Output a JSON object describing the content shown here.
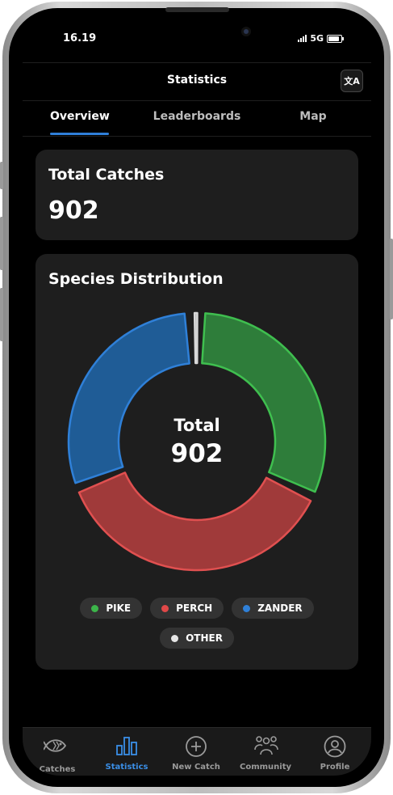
{
  "status_bar": {
    "time": "16.19",
    "network": "5G"
  },
  "header": {
    "title": "Statistics",
    "translate_icon": "translate-icon",
    "translate_glyph": "文A"
  },
  "tabs": [
    {
      "label": "Overview",
      "active": true
    },
    {
      "label": "Leaderboards",
      "active": false
    },
    {
      "label": "Map",
      "active": false
    }
  ],
  "total_card": {
    "title": "Total Catches",
    "value": "902"
  },
  "species_card": {
    "title": "Species Distribution",
    "center_label": "Total",
    "center_value": "902"
  },
  "chart_data": {
    "type": "pie",
    "categories": [
      "PIKE",
      "PERCH",
      "ZANDER",
      "OTHER"
    ],
    "values": [
      285,
      335,
      270,
      12
    ],
    "colors": [
      "#2e7d3a",
      "#a03a3a",
      "#1f5c96",
      "#b0b0b0"
    ],
    "stroke_colors": [
      "#3fbf4f",
      "#e05050",
      "#2f80d8",
      "#d8d8d8"
    ],
    "legend_dot_colors": [
      "#3cb54a",
      "#e04848",
      "#2f80d8",
      "#e6e6e6"
    ],
    "legend_position": "bottom"
  },
  "bottom_nav": [
    {
      "label": "Catches",
      "icon": "fish-icon",
      "active": false
    },
    {
      "label": "Statistics",
      "icon": "bar-chart-icon",
      "active": true
    },
    {
      "label": "New Catch",
      "icon": "plus-circle-icon",
      "active": false
    },
    {
      "label": "Community",
      "icon": "people-icon",
      "active": false
    },
    {
      "label": "Profile",
      "icon": "user-circle-icon",
      "active": false
    }
  ]
}
